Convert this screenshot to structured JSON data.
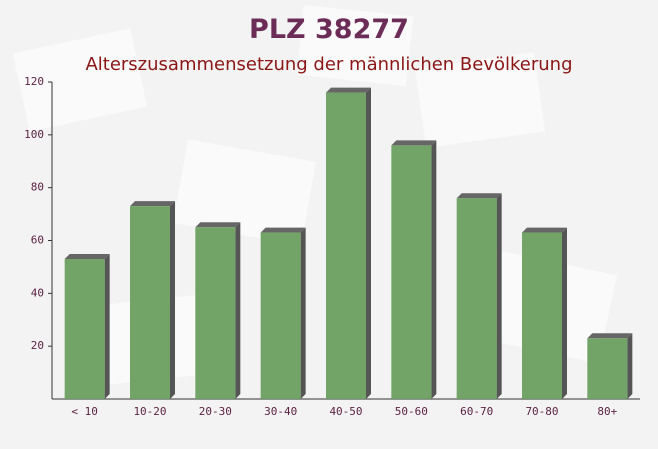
{
  "chart_data": {
    "type": "bar",
    "title": "PLZ 38277",
    "subtitle": "Alterszusammensetzung der männlichen Bevölkerung",
    "categories": [
      "< 10",
      "10-20",
      "20-30",
      "30-40",
      "40-50",
      "50-60",
      "60-70",
      "70-80",
      "80+"
    ],
    "values": [
      53,
      73,
      65,
      63,
      116,
      96,
      76,
      63,
      23
    ],
    "color": "#6a9e5f",
    "ylim": [
      0,
      120
    ],
    "yticks": [
      20,
      40,
      60,
      80,
      100,
      120
    ]
  }
}
